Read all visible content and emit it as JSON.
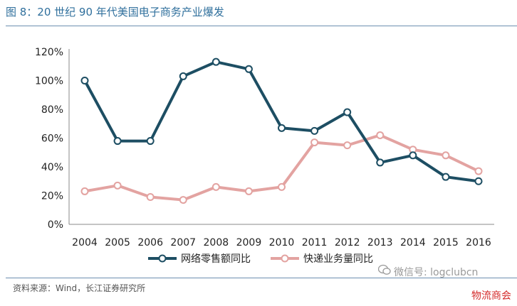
{
  "header": {
    "title": "图 8：20 世纪 90 年代美国电子商务产业爆发"
  },
  "footer": {
    "source": "资料来源：Wind，长江证券研究所"
  },
  "watermark": {
    "text": "微信号: logclubcn",
    "icon": "wechat-icon"
  },
  "corner_tag": "物流商会",
  "chart_data": {
    "type": "line",
    "x": [
      "2004",
      "2005",
      "2006",
      "2007",
      "2008",
      "2009",
      "2010",
      "2011",
      "2012",
      "2013",
      "2014",
      "2015",
      "2016"
    ],
    "ylim": [
      0,
      120
    ],
    "yticks": [
      0,
      20,
      40,
      60,
      80,
      100,
      120
    ],
    "ytick_labels": [
      "0%",
      "20%",
      "40%",
      "60%",
      "80%",
      "100%",
      "120%"
    ],
    "grid": false,
    "legend_position": "bottom",
    "series": [
      {
        "name": "网络零售额同比",
        "color": "#1d4e63",
        "values": [
          100,
          58,
          58,
          103,
          113,
          108,
          67,
          65,
          78,
          43,
          48,
          33,
          30
        ]
      },
      {
        "name": "快递业务量同比",
        "color": "#e3a3a1",
        "values": [
          23,
          27,
          19,
          17,
          26,
          23,
          26,
          57,
          55,
          62,
          52,
          48,
          37
        ]
      }
    ]
  }
}
